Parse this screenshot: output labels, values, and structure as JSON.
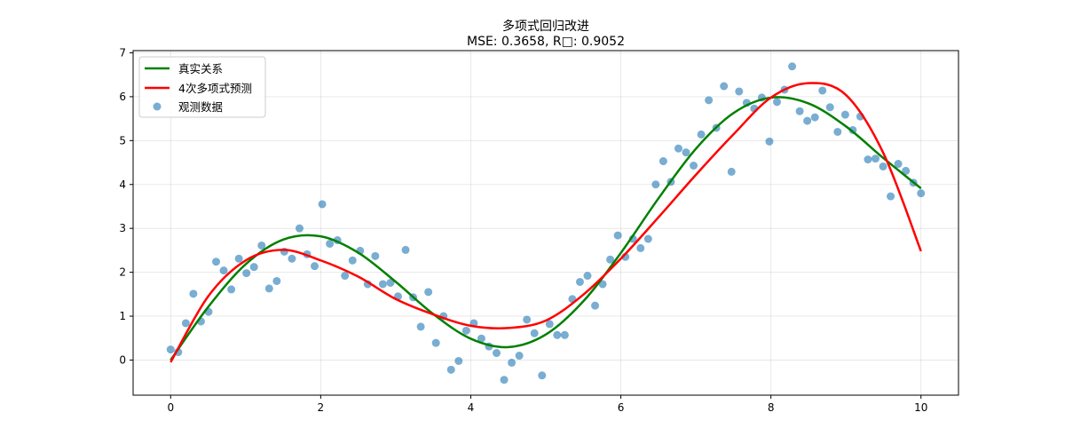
{
  "chart_data": {
    "type": "scatter",
    "title": "多项式回归改进",
    "subtitle": "MSE: 0.3658, R□: 0.9052",
    "xlabel": "",
    "ylabel": "",
    "xlim": [
      -0.5,
      10.5
    ],
    "ylim": [
      -0.8,
      7.05
    ],
    "xticks": [
      0,
      2,
      4,
      6,
      8,
      10
    ],
    "yticks": [
      0,
      1,
      2,
      3,
      4,
      5,
      6,
      7
    ],
    "grid": true,
    "legend_position": "top-left",
    "legend": [
      "真实关系",
      "4次多项式预测",
      "观测数据"
    ],
    "colors": {
      "true": "#008000",
      "pred": "#ff0000",
      "obs": "#1f77b4"
    },
    "lines": [
      {
        "name": "真实关系",
        "color": "#008000",
        "x": [
          0,
          0.5,
          1,
          1.5,
          2,
          2.5,
          3,
          3.5,
          4,
          4.5,
          5,
          5.5,
          6,
          6.5,
          7,
          7.5,
          8,
          8.5,
          9,
          9.5,
          10
        ],
        "y": [
          0,
          1.209,
          2.183,
          2.745,
          2.819,
          2.447,
          1.782,
          1.048,
          0.486,
          0.295,
          0.582,
          1.339,
          2.441,
          3.68,
          4.814,
          5.626,
          5.979,
          5.847,
          5.324,
          4.6,
          3.912
        ]
      },
      {
        "name": "4次多项式预测",
        "color": "#ff0000",
        "x": [
          0,
          0.5,
          1,
          1.5,
          2,
          2.5,
          3,
          3.5,
          4,
          4.5,
          5,
          5.5,
          6,
          6.5,
          7,
          7.5,
          8,
          8.5,
          9,
          9.5,
          10
        ],
        "y": [
          -0.05,
          1.45,
          2.27,
          2.51,
          2.27,
          1.9,
          1.39,
          1.04,
          0.78,
          0.73,
          0.9,
          1.49,
          2.31,
          3.25,
          4.22,
          5.14,
          5.98,
          6.31,
          6.04,
          4.71,
          2.48
        ]
      }
    ],
    "scatter": {
      "name": "观测数据",
      "x_start": 0,
      "x_end": 10,
      "y": [
        0.24,
        0.18,
        0.84,
        1.51,
        0.88,
        1.1,
        2.24,
        2.04,
        1.61,
        2.31,
        1.98,
        2.12,
        2.61,
        1.63,
        1.8,
        2.47,
        2.31,
        3.0,
        2.41,
        2.14,
        3.55,
        2.65,
        2.73,
        1.92,
        2.27,
        2.49,
        1.73,
        2.37,
        1.73,
        1.76,
        1.45,
        2.51,
        1.43,
        0.76,
        1.55,
        0.39,
        1.0,
        -0.22,
        -0.02,
        0.67,
        0.84,
        0.49,
        0.31,
        0.16,
        -0.45,
        -0.06,
        0.1,
        0.92,
        0.61,
        -0.35,
        0.82,
        0.57,
        0.57,
        1.39,
        1.78,
        1.92,
        1.24,
        1.73,
        2.29,
        2.84,
        2.35,
        2.76,
        2.55,
        2.76,
        4.0,
        4.53,
        4.06,
        4.82,
        4.73,
        4.43,
        5.14,
        5.92,
        5.29,
        6.24,
        4.29,
        6.12,
        5.86,
        5.73,
        5.98,
        4.98,
        5.88,
        6.16,
        6.69,
        5.67,
        5.45,
        5.53,
        6.14,
        5.76,
        5.2,
        5.59,
        5.24,
        5.55,
        4.57,
        4.59,
        4.41,
        3.73,
        4.47,
        4.31,
        4.04,
        3.8
      ]
    }
  }
}
